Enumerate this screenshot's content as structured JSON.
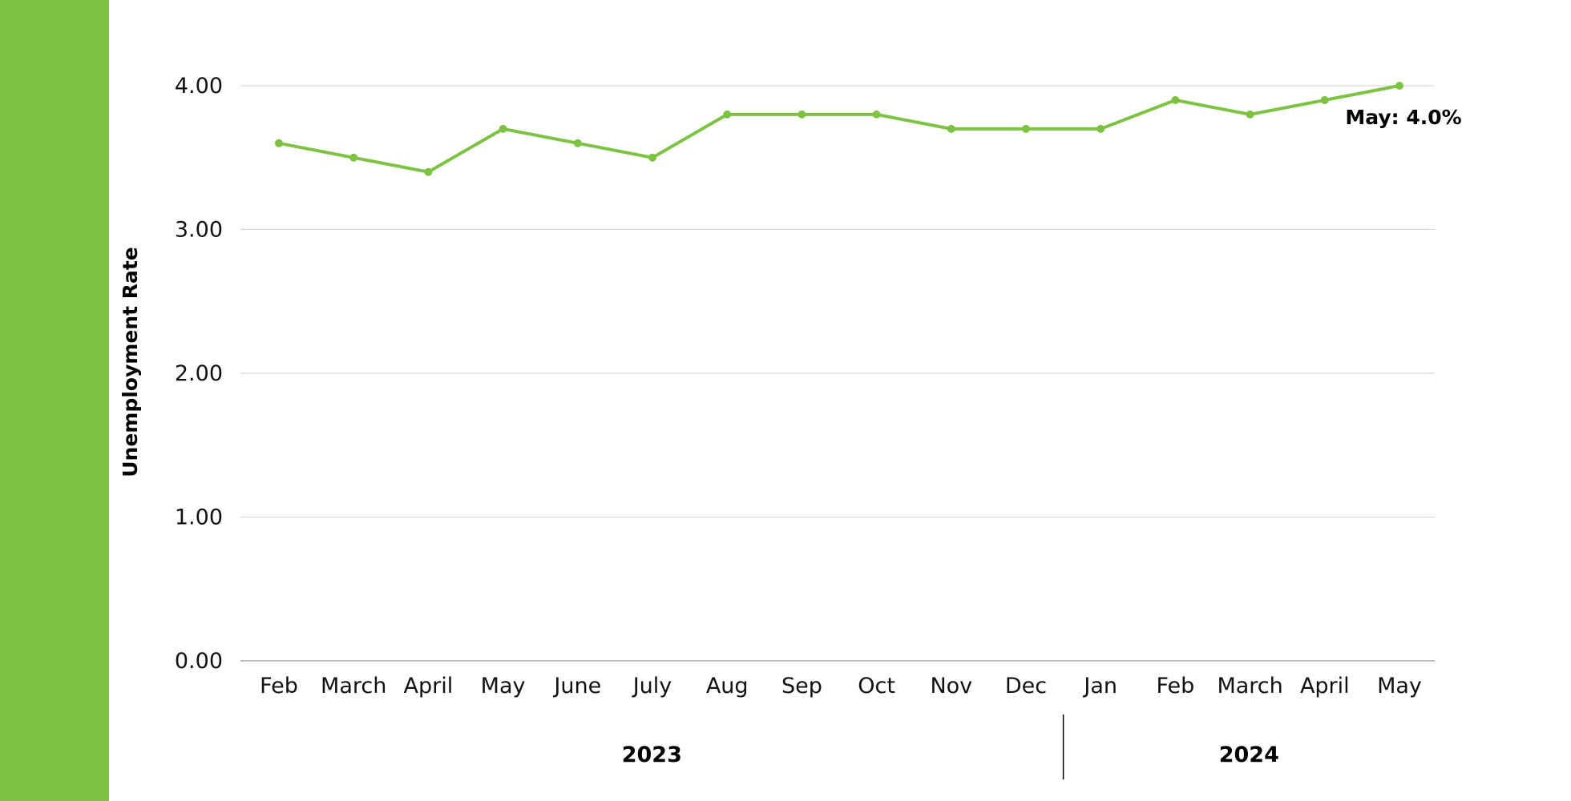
{
  "colors": {
    "accent": "#7dc243",
    "gridline": "#d9d9d9",
    "axis": "#a6a6a6",
    "text": "#111111"
  },
  "chart_data": {
    "type": "line",
    "title": "",
    "xlabel": "",
    "ylabel": "Unemployment Rate",
    "ylim": [
      0,
      4
    ],
    "y_ticks": [
      "0.00",
      "1.00",
      "2.00",
      "3.00",
      "4.00"
    ],
    "categories": [
      "Feb",
      "March",
      "April",
      "May",
      "June",
      "July",
      "Aug",
      "Sep",
      "Oct",
      "Nov",
      "Dec",
      "Jan",
      "Feb",
      "March",
      "April",
      "May"
    ],
    "groups": [
      {
        "label": "2023",
        "categories": [
          "Feb",
          "March",
          "April",
          "May",
          "June",
          "July",
          "Aug",
          "Sep",
          "Oct",
          "Nov",
          "Dec"
        ]
      },
      {
        "label": "2024",
        "categories": [
          "Jan",
          "Feb",
          "March",
          "April",
          "May"
        ]
      }
    ],
    "series": [
      {
        "values": [
          3.6,
          3.5,
          3.4,
          3.7,
          3.6,
          3.5,
          3.8,
          3.8,
          3.8,
          3.7,
          3.7,
          3.7,
          3.9,
          3.8,
          3.9,
          4.0
        ]
      }
    ],
    "annotation": {
      "category_index": 15,
      "text": "May: 4.0%"
    },
    "grid": true,
    "legend": "none"
  }
}
